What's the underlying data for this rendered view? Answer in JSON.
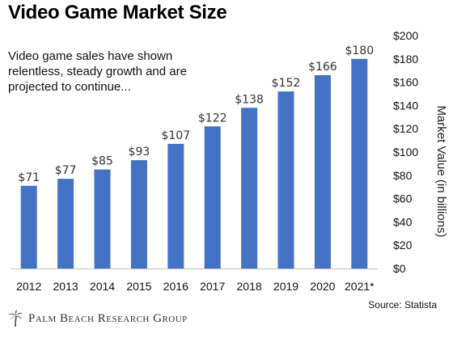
{
  "title": "Video Game Market Size",
  "subtitle": "Video game sales have shown relentless, steady growth and are projected to continue...",
  "source": "Source: Statista",
  "brand": {
    "name": "Palm Beach Research Group",
    "logo_icon": "palm-tree-icon"
  },
  "colors": {
    "bar": "#4472C4",
    "axis": "#BFBFBF",
    "text": "#222222"
  },
  "chart_data": {
    "type": "bar",
    "categories": [
      "2012",
      "2013",
      "2014",
      "2015",
      "2016",
      "2017",
      "2018",
      "2019",
      "2020",
      "2021*"
    ],
    "values": [
      71,
      77,
      85,
      93,
      107,
      122,
      138,
      152,
      166,
      180
    ],
    "data_labels": [
      "$71",
      "$77",
      "$85",
      "$93",
      "$107",
      "$122",
      "$138",
      "$152",
      "$166",
      "$180"
    ],
    "title": "Video Game Market Size",
    "xlabel": "",
    "ylabel": "Market Value (in billions)",
    "ylim": [
      0,
      200
    ],
    "yticks": [
      0,
      20,
      40,
      60,
      80,
      100,
      120,
      140,
      160,
      180,
      200
    ],
    "ytick_labels": [
      "$0",
      "$20",
      "$40",
      "$60",
      "$80",
      "$100",
      "$120",
      "$140",
      "$160",
      "$180",
      "$200"
    ],
    "y_axis_side": "right",
    "grid": false,
    "legend": "none"
  }
}
